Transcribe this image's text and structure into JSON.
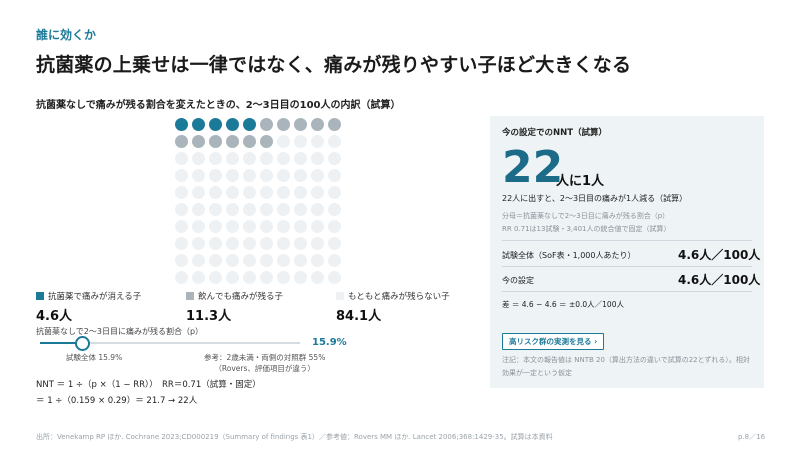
{
  "header": {
    "kicker": "誰に効くか",
    "title": "抗菌薬の上乗せは一律ではなく、痛みが残りやすい子ほど大きくなる"
  },
  "chart_heading": "抗菌薬なしで痛みが残る割合を変えたときの、2〜3日目の100人の内訳（試算）",
  "colors": {
    "accent": "#1c7a99",
    "dot_cleared": "#1c7a99",
    "dot_remain": "#aab4bb",
    "dot_none": "#edf1f4"
  },
  "chart_data": {
    "type": "waffle",
    "total": 100,
    "series": [
      {
        "name": "抗菌薬で痛みが消える子",
        "value": 4.6,
        "display": "4.6人",
        "dots": 5
      },
      {
        "name": "飲んでも痛みが残る子",
        "value": 11.3,
        "display": "11.3人",
        "dots": 11
      },
      {
        "name": "もともと痛みが残らない子",
        "value": 84.1,
        "display": "84.1人",
        "dots": 84
      }
    ]
  },
  "slider": {
    "label": "抗菌薬なしで2〜3日目に痛みが残る割合（p）",
    "value_label": "15.9%",
    "value": 15.9,
    "tick_left": "試験全体 15.9%",
    "tick_right_line1": "参考：2歳未満・両側の対照群 55%",
    "tick_right_line2": "（Rovers、評価項目が違う）"
  },
  "formula": {
    "line1": "NNT ＝ 1 ÷（p ×（1 − RR））　RR＝0.71（試算・固定）",
    "line2": "＝ 1 ÷（0.159 × 0.29）＝ 21.7 → 22人"
  },
  "panel": {
    "title": "今の設定でのNNT（試算）",
    "nnt": "22",
    "nnt_suffix": "人に1人",
    "desc": "22人に出すと、2〜3日目の痛みが1人減る（試算）",
    "note_line1": "分母＝抗菌薬なしで2〜3日目に痛みが残る割合（p）",
    "note_line2": "RR 0.71は13試験・3,401人の統合値で固定（試算）",
    "row1_label": "試験全体（SoF表・1,000人あたり）",
    "row1_value": "4.6人／100人",
    "row2_label": "今の設定",
    "row2_value": "4.6人／100人",
    "diff": "差 ＝ 4.6 − 4.6 ＝ ±0.0人／100人",
    "button": "高リスク群の実測を見る ›",
    "footnote_line1": "注記：本文の報告値は NNTB 20（算出方法の違いで試算の22とずれる）。相対",
    "footnote_line2": "効果が一定という仮定"
  },
  "footer": {
    "source": "出所：Venekamp RP ほか. Cochrane 2023;CD000219（Summary of findings 表1）／参考値：Rovers MM ほか. Lancet 2006;368:1429-35。試算は本資料",
    "page": "p.8／16"
  }
}
